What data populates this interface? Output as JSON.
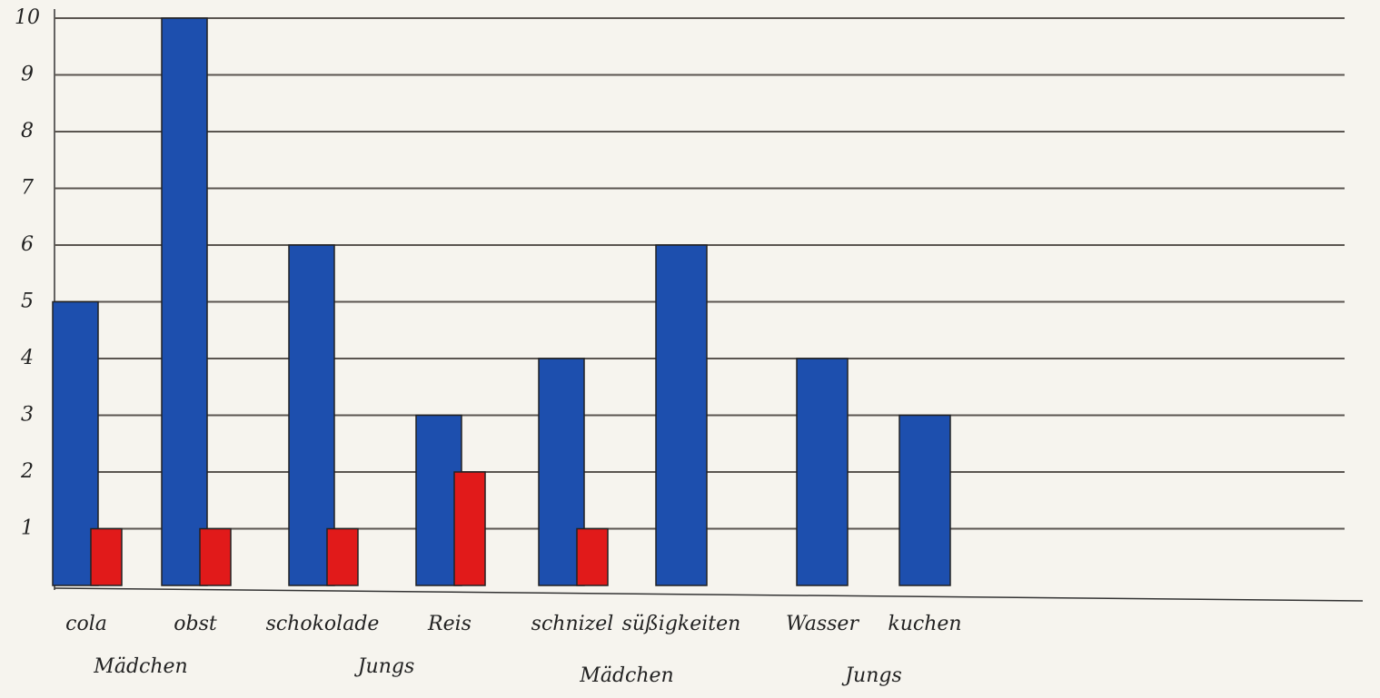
{
  "chart_data": {
    "type": "bar",
    "categories": [
      "cola",
      "obst",
      "schokolade",
      "Reis",
      "schnizel",
      "süßigkeiten",
      "Wasser",
      "kuchen"
    ],
    "group_labels": [
      "Mädchen",
      "Jungs",
      "Mädchen",
      "Jungs"
    ],
    "series": [
      {
        "color": "#1d4fae",
        "values": [
          5,
          10,
          6,
          3,
          4,
          6,
          4,
          3
        ]
      },
      {
        "color": "#e11a1a",
        "values": [
          1,
          1,
          1,
          2,
          1,
          null,
          null,
          null
        ]
      }
    ],
    "ylim": [
      0,
      10
    ],
    "yticks": [
      1,
      2,
      3,
      4,
      5,
      6,
      7,
      8,
      9,
      10
    ],
    "grid": true
  }
}
